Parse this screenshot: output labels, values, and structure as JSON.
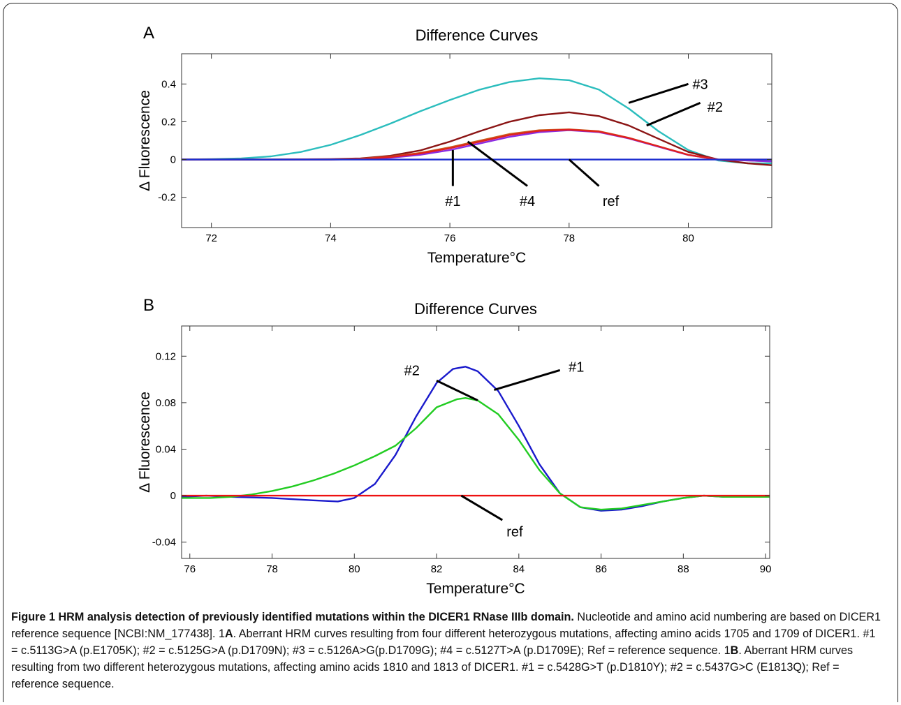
{
  "caption": {
    "title": "Figure 1 HRM analysis detection of previously identified mutations within the DICER1 RNase IIIb domain.",
    "s1": " Nucleotide and amino acid numbering are based on DICER1 reference sequence [NCBI:NM_177438]. 1",
    "bold_a": "A",
    "s2": ". Aberrant HRM curves resulting from four different heterozygous mutations, affecting amino acids 1705 and 1709 of DICER1. #1 = c.5113G>A (p.E1705K); #2 = c.5125G>A (p.D1709N); #3 = c.5126A>G(p.D1709G); #4 = c.5127T>A (p.D1709E); Ref = reference sequence. 1",
    "bold_b": "B",
    "s3": ". Aberrant HRM curves resulting from two different heterozygous mutations, affecting amino acids 1810 and 1813 of DICER1. #1 = c.5428G>T (p.D1810Y); #2 = c.5437G>C (E1813Q); Ref = reference sequence."
  },
  "chart_data": [
    {
      "panel": "A",
      "type": "line",
      "title": "Difference Curves",
      "xlabel": "Temperature°C",
      "ylabel": "Δ Fluorescence",
      "xlim": [
        71.5,
        81.4
      ],
      "ylim": [
        -0.36,
        0.56
      ],
      "xticks": [
        72,
        74,
        76,
        78,
        80
      ],
      "xtick_labels": [
        "72",
        "74",
        "76",
        "78",
        "80"
      ],
      "yticks": [
        0.4,
        0.2,
        0,
        -0.2
      ],
      "ytick_labels": [
        "0.4",
        "0.2",
        "0",
        "-0.2"
      ],
      "grid": false,
      "series": [
        {
          "color": "#2bbdbd",
          "x": [
            71.5,
            72.0,
            72.5,
            73.0,
            73.5,
            74.0,
            74.5,
            75.0,
            75.5,
            76.0,
            76.5,
            77.0,
            77.5,
            78.0,
            78.5,
            79.0,
            79.5,
            80.0,
            80.5,
            81.0,
            81.4
          ],
          "y": [
            0.0,
            0.002,
            0.006,
            0.017,
            0.04,
            0.078,
            0.13,
            0.19,
            0.255,
            0.315,
            0.37,
            0.41,
            0.43,
            0.42,
            0.37,
            0.27,
            0.15,
            0.05,
            -0.005,
            -0.02,
            -0.02
          ]
        },
        {
          "color": "#8b1414",
          "x": [
            71.5,
            72.0,
            73.0,
            74.0,
            74.5,
            75.0,
            75.5,
            76.0,
            76.5,
            77.0,
            77.5,
            78.0,
            78.5,
            79.0,
            79.5,
            80.0,
            80.5,
            81.0,
            81.4
          ],
          "y": [
            0.0,
            0.0,
            0.0,
            0.002,
            0.006,
            0.02,
            0.048,
            0.095,
            0.15,
            0.2,
            0.235,
            0.25,
            0.23,
            0.18,
            0.11,
            0.04,
            0.0,
            -0.02,
            -0.03
          ]
        },
        {
          "color": "#c8641e",
          "x": [
            71.5,
            73.0,
            74.0,
            74.5,
            75.0,
            75.5,
            76.0,
            76.5,
            77.0,
            77.5,
            78.0,
            78.5,
            79.0,
            79.5,
            80.0,
            80.5,
            81.0,
            81.4
          ],
          "y": [
            0.0,
            0.0,
            0.001,
            0.004,
            0.015,
            0.035,
            0.065,
            0.1,
            0.135,
            0.155,
            0.16,
            0.15,
            0.115,
            0.07,
            0.025,
            0.0,
            -0.005,
            -0.01
          ]
        },
        {
          "color": "#8a2be2",
          "x": [
            71.5,
            73.0,
            74.0,
            74.5,
            75.0,
            75.5,
            76.0,
            76.5,
            77.0,
            77.5,
            78.0,
            78.5,
            79.0,
            79.5,
            80.0,
            80.5,
            81.0,
            81.4
          ],
          "y": [
            0.0,
            0.0,
            0.0,
            0.002,
            0.009,
            0.025,
            0.05,
            0.085,
            0.12,
            0.145,
            0.155,
            0.145,
            0.112,
            0.068,
            0.024,
            0.0,
            -0.005,
            -0.01
          ]
        },
        {
          "color": "#e02020",
          "x": [
            71.5,
            73.0,
            74.0,
            74.5,
            75.0,
            75.5,
            76.0,
            76.5,
            77.0,
            77.5,
            78.0,
            78.5,
            79.0,
            79.5,
            80.0,
            80.5,
            81.0,
            81.4
          ],
          "y": [
            0.0,
            0.0,
            0.0,
            0.003,
            0.013,
            0.032,
            0.06,
            0.095,
            0.13,
            0.152,
            0.158,
            0.148,
            0.114,
            0.07,
            0.025,
            0.0,
            0.0,
            0.0
          ]
        },
        {
          "color": "#1e2fd0",
          "x": [
            71.5,
            81.4
          ],
          "y": [
            0.0,
            0.0
          ]
        }
      ],
      "annotations": [
        {
          "text": "#3",
          "x": 80.2,
          "y": 0.4,
          "line": [
            [
              79.0,
              0.3
            ],
            [
              80.0,
              0.4
            ]
          ]
        },
        {
          "text": "#2",
          "x": 80.45,
          "y": 0.28,
          "line": [
            [
              79.3,
              0.18
            ],
            [
              80.2,
              0.3
            ]
          ]
        },
        {
          "text": "#1",
          "x": 76.05,
          "y": -0.22,
          "line": [
            [
              76.05,
              -0.14
            ],
            [
              76.05,
              0.05
            ]
          ]
        },
        {
          "text": "#4",
          "x": 77.3,
          "y": -0.22,
          "line": [
            [
              77.3,
              -0.14
            ],
            [
              76.3,
              0.095
            ]
          ]
        },
        {
          "text": "ref",
          "x": 78.7,
          "y": -0.22,
          "line": [
            [
              78.5,
              -0.14
            ],
            [
              78.0,
              0.0
            ]
          ]
        }
      ]
    },
    {
      "panel": "B",
      "type": "line",
      "title": "Difference Curves",
      "xlabel": "Temperature°C",
      "ylabel": "Δ Fluorescence",
      "xlim": [
        75.8,
        90.1
      ],
      "ylim": [
        -0.054,
        0.146
      ],
      "xticks": [
        76,
        78,
        80,
        82,
        84,
        86,
        88,
        90
      ],
      "xtick_labels": [
        "76",
        "78",
        "80",
        "82",
        "84",
        "86",
        "88",
        "90"
      ],
      "yticks": [
        0.12,
        0.08,
        0.04,
        0,
        -0.04
      ],
      "ytick_labels": [
        "0.12",
        "0.08",
        "0.04",
        "0",
        "-0.04"
      ],
      "grid": false,
      "series": [
        {
          "color": "#1a1acc",
          "x": [
            75.8,
            76.4,
            77.0,
            78.0,
            79.0,
            79.6,
            80.0,
            80.5,
            81.0,
            81.5,
            82.0,
            82.4,
            82.7,
            83.0,
            83.5,
            84.0,
            84.5,
            85.0,
            85.5,
            86.0,
            86.5,
            87.0,
            87.5,
            88.0,
            88.5,
            89.0,
            89.5,
            90.1
          ],
          "y": [
            -0.001,
            0.0,
            -0.001,
            -0.002,
            -0.004,
            -0.005,
            -0.002,
            0.01,
            0.035,
            0.068,
            0.097,
            0.109,
            0.111,
            0.107,
            0.09,
            0.06,
            0.027,
            0.002,
            -0.01,
            -0.013,
            -0.012,
            -0.009,
            -0.005,
            -0.002,
            0.0,
            -0.001,
            -0.001,
            -0.001
          ]
        },
        {
          "color": "#22cc22",
          "x": [
            75.8,
            76.5,
            77.0,
            77.5,
            78.0,
            78.5,
            79.0,
            79.5,
            80.0,
            80.5,
            81.0,
            81.5,
            82.0,
            82.5,
            82.7,
            83.0,
            83.5,
            84.0,
            84.5,
            85.0,
            85.5,
            86.0,
            86.5,
            87.0,
            87.5,
            88.0,
            88.5,
            89.0,
            89.5,
            90.1
          ],
          "y": [
            -0.002,
            -0.002,
            -0.001,
            0.001,
            0.004,
            0.008,
            0.013,
            0.019,
            0.026,
            0.034,
            0.043,
            0.058,
            0.076,
            0.083,
            0.084,
            0.082,
            0.07,
            0.048,
            0.022,
            0.002,
            -0.01,
            -0.012,
            -0.011,
            -0.008,
            -0.005,
            -0.002,
            0.0,
            -0.001,
            -0.001,
            -0.001
          ]
        },
        {
          "color": "#ee1111",
          "x": [
            75.8,
            90.1
          ],
          "y": [
            0.0,
            0.0
          ]
        }
      ],
      "annotations": [
        {
          "text": "#1",
          "x": 85.4,
          "y": 0.111,
          "line": [
            [
              83.4,
              0.091
            ],
            [
              85.0,
              0.108
            ]
          ]
        },
        {
          "text": "#2",
          "x": 81.4,
          "y": 0.108,
          "line": [
            [
              82.0,
              0.099
            ],
            [
              83.0,
              0.082
            ]
          ]
        },
        {
          "text": "ref",
          "x": 83.9,
          "y": -0.031,
          "line": [
            [
              83.6,
              -0.021
            ],
            [
              82.6,
              0.0
            ]
          ]
        }
      ]
    }
  ]
}
